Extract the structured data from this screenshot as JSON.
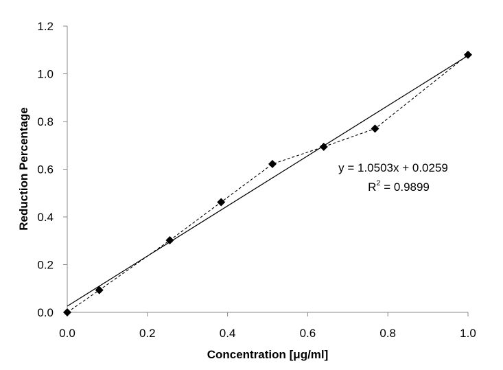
{
  "chart_data": {
    "type": "scatter",
    "title": "",
    "xlabel": "Concentration [μg/ml]",
    "ylabel": "Reduction Percentage",
    "xlim": [
      0,
      1.0
    ],
    "ylim": [
      0,
      1.2
    ],
    "x_ticks": [
      "0.0",
      "0.2",
      "0.4",
      "0.6",
      "0.8",
      "1.0"
    ],
    "y_ticks": [
      "0.0",
      "0.2",
      "0.4",
      "0.6",
      "0.8",
      "1.0",
      "1.2"
    ],
    "grid": false,
    "legend": "none",
    "series": [
      {
        "marker": "diamond",
        "line_style": "dashed",
        "color": "#000000",
        "x": [
          0.0,
          0.08,
          0.256,
          0.384,
          0.512,
          0.64,
          0.768,
          1.0
        ],
        "y": [
          0.0,
          0.093,
          0.302,
          0.462,
          0.622,
          0.694,
          0.77,
          1.08
        ]
      }
    ],
    "trendline": {
      "type": "linear",
      "slope": 1.0503,
      "intercept": 0.0259,
      "line_style": "solid",
      "color": "#000000",
      "equation": "y = 1.0503x + 0.0259",
      "r_squared_label": "R",
      "r_squared_sup": "2",
      "r_squared_value": " = 0.9899"
    }
  }
}
